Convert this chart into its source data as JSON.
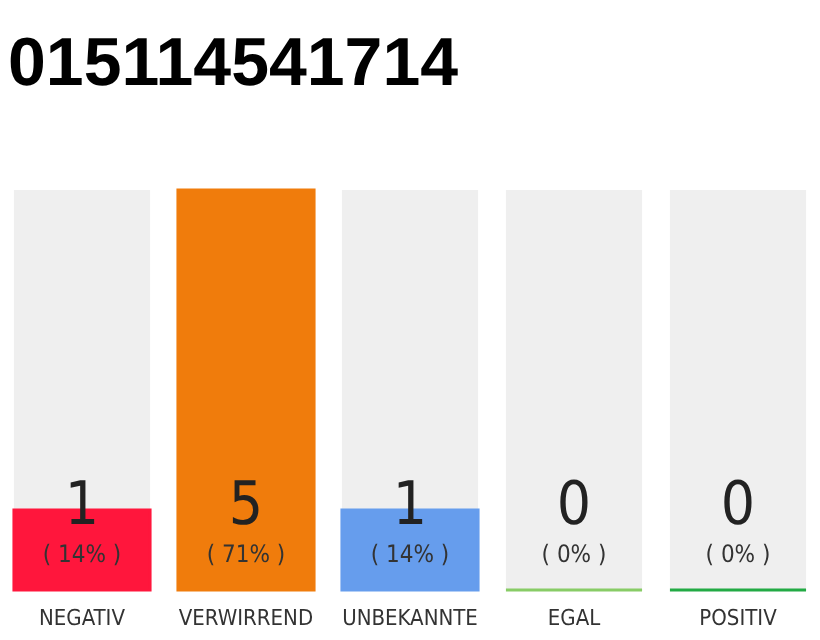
{
  "chart_data": {
    "type": "bar",
    "title": "015114541714",
    "categories": [
      "NEGATIV",
      "VERWIRREND",
      "UNBEKANNTE",
      "EGAL",
      "POSITIV"
    ],
    "values": [
      1,
      5,
      1,
      0,
      0
    ],
    "colors": [
      "#ff163c",
      "#f07c0c",
      "#669ded",
      "#88cc66",
      "#22aa44"
    ],
    "value_labels": [
      "1",
      "5",
      "1",
      "0",
      "0"
    ],
    "annotations": [
      {
        "text": "( 14% )",
        "x": "NEGATIV",
        "y": 0
      },
      {
        "text": "( 71% )",
        "x": "VERWIRREND",
        "y": 0
      },
      {
        "text": "( 14% )",
        "x": "UNBEKANNTE",
        "y": 0
      },
      {
        "text": "( 0% )",
        "x": "EGAL",
        "y": 0
      },
      {
        "text": "( 0% )",
        "x": "POSITIV",
        "y": 0
      }
    ],
    "tick_labels": "x"
  }
}
